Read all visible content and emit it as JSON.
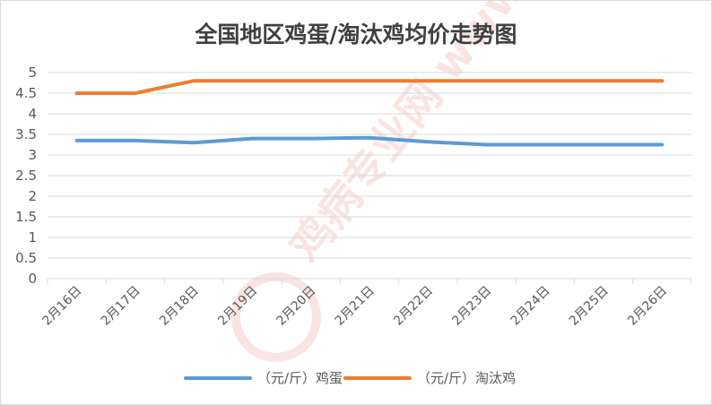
{
  "chart_data": {
    "type": "line",
    "title": "全国地区鸡蛋/淘汰鸡均价走势图",
    "categories": [
      "2月16日",
      "2月17日",
      "2月18日",
      "2月19日",
      "2月20日",
      "2月21日",
      "2月22日",
      "2月23日",
      "2月24日",
      "2月25日",
      "2月26日"
    ],
    "series": [
      {
        "name": "（元/斤）鸡蛋",
        "color": "#5b9bd5",
        "values": [
          3.35,
          3.35,
          3.3,
          3.4,
          3.4,
          3.42,
          3.32,
          3.25,
          3.25,
          3.25,
          3.25
        ]
      },
      {
        "name": "（元/斤）淘汰鸡",
        "color": "#ed7d31",
        "values": [
          4.5,
          4.5,
          4.8,
          4.8,
          4.8,
          4.8,
          4.8,
          4.8,
          4.8,
          4.8,
          4.8
        ]
      }
    ],
    "yticks": [
      "0",
      "0.5",
      "1",
      "1.5",
      "2",
      "2.5",
      "3",
      "3.5",
      "4",
      "4.5",
      "5"
    ],
    "ylim": [
      0,
      5
    ],
    "grid": true,
    "legend_position": "bottom",
    "watermark": "鸡病专业网 www.jbzyw.com"
  }
}
